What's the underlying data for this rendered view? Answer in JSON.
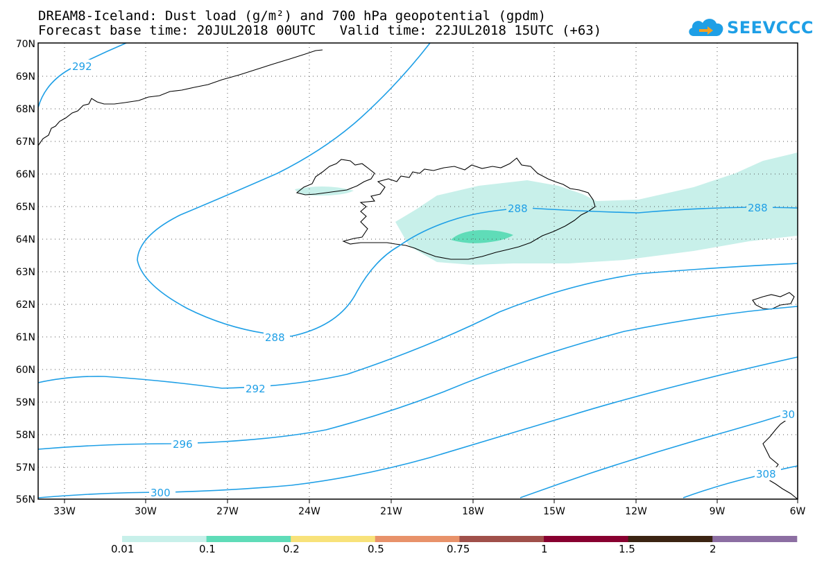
{
  "header": {
    "title_line1": "DREAM8-Iceland: Dust load (g/m²) and 700 hPa geopotential (gpdm)",
    "title_line2": "Forecast base time: 20JUL2018 00UTC   Valid time: 22JUL2018 15UTC (+63)"
  },
  "logo": {
    "text": "SEEVCCC",
    "icon": "cloud-icon",
    "color": "#1e9fe6"
  },
  "map": {
    "lat_labels": [
      "70N",
      "69N",
      "68N",
      "67N",
      "66N",
      "65N",
      "64N",
      "63N",
      "62N",
      "61N",
      "60N",
      "59N",
      "58N",
      "57N",
      "56N"
    ],
    "lon_labels": [
      "33W",
      "30W",
      "27W",
      "24W",
      "21W",
      "18W",
      "15W",
      "12W",
      "9W",
      "6W"
    ],
    "contour_color": "#1e9fe6",
    "contour_labels": [
      "292",
      "288",
      "288",
      "288",
      "292",
      "296",
      "300",
      "30",
      "308"
    ]
  },
  "colorbar": {
    "colors": [
      "#c8f0ea",
      "#5fdcb8",
      "#f8e27a",
      "#e8926a",
      "#a0504a",
      "#880030",
      "#3b2412",
      "#8c6ea2"
    ],
    "labels": [
      "0.01",
      "0.1",
      "0.2",
      "0.5",
      "0.75",
      "1",
      "1.5",
      "2"
    ]
  }
}
